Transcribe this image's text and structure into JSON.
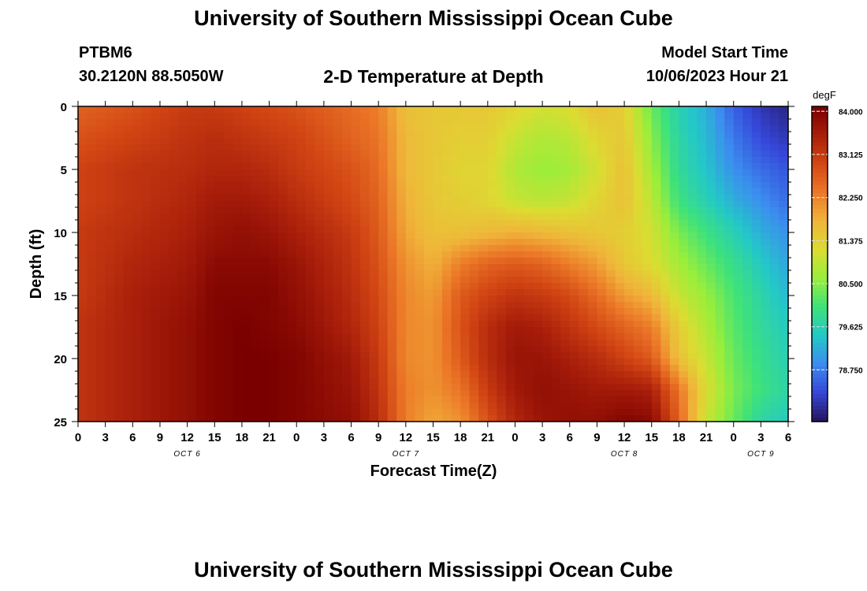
{
  "header": {
    "title": "University of Southern Mississippi Ocean Cube",
    "station": "PTBM6",
    "coords": "30.2120N  88.5050W",
    "subtitle": "2-D Temperature at Depth",
    "model_start_label": "Model Start Time",
    "model_start_value": "10/06/2023 Hour 21"
  },
  "footer": {
    "title": "University of Southern Mississippi Ocean Cube"
  },
  "chart_data": {
    "type": "heatmap",
    "xlabel": "Forecast Time(Z)",
    "ylabel": "Depth (ft)",
    "x_tick_labels": [
      "0",
      "3",
      "6",
      "9",
      "12",
      "15",
      "18",
      "21",
      "0",
      "3",
      "6",
      "9",
      "12",
      "15",
      "18",
      "21",
      "0",
      "3",
      "6",
      "9",
      "12",
      "15",
      "18",
      "21",
      "0",
      "3",
      "6"
    ],
    "x_date_labels": [
      {
        "label": "OCT 6",
        "tick_index": 4
      },
      {
        "label": "OCT 7",
        "tick_index": 12
      },
      {
        "label": "OCT 8",
        "tick_index": 20
      },
      {
        "label": "OCT 9",
        "tick_index": 25
      }
    ],
    "xlim_hours": [
      0,
      78
    ],
    "y_ticks": [
      0,
      5,
      10,
      15,
      20,
      25
    ],
    "ylim": [
      0,
      25
    ],
    "y_inverted": true,
    "colorbar": {
      "unit": "degF",
      "range": [
        77.7,
        84.1
      ],
      "labels": [
        "84.000",
        "83.125",
        "82.250",
        "81.375",
        "80.500",
        "79.625",
        "78.750"
      ],
      "values": [
        84.0,
        83.125,
        82.25,
        81.375,
        80.5,
        79.625,
        78.75
      ],
      "colors": [
        "#25145a",
        "#3546d8",
        "#3c8cf0",
        "#23c8c8",
        "#3ee27a",
        "#9aee3a",
        "#dcdc32",
        "#f0b43a",
        "#ec7828",
        "#d24614",
        "#a81e0a",
        "#7a0000"
      ]
    },
    "field_description_depth_ft": [
      0,
      2.5,
      5,
      7.5,
      10,
      12.5,
      15,
      17.5,
      20,
      22.5,
      25
    ],
    "field_description_hours": [
      0,
      6,
      12,
      15,
      18,
      21,
      24,
      30,
      33,
      36,
      39,
      42,
      45,
      48,
      51,
      54,
      57,
      60,
      63,
      66,
      69,
      72,
      75,
      78
    ],
    "temperature_degF": [
      [
        82.6,
        82.8,
        83.1,
        83.1,
        83.0,
        82.9,
        82.8,
        82.5,
        82.3,
        81.6,
        81.5,
        81.5,
        81.5,
        81.3,
        81.1,
        81.2,
        81.6,
        81.4,
        80.3,
        79.6,
        79.2,
        78.5,
        78.1,
        77.9
      ],
      [
        82.8,
        83.0,
        83.2,
        83.3,
        83.2,
        83.1,
        83.0,
        82.6,
        82.4,
        81.7,
        81.5,
        81.4,
        81.4,
        81.0,
        80.8,
        80.9,
        81.3,
        81.5,
        80.5,
        79.7,
        79.3,
        78.7,
        78.3,
        78.1
      ],
      [
        83.0,
        83.2,
        83.3,
        83.4,
        83.4,
        83.3,
        83.1,
        82.8,
        82.5,
        81.7,
        81.5,
        81.3,
        81.3,
        80.8,
        80.6,
        80.7,
        81.1,
        81.6,
        80.7,
        79.8,
        79.4,
        78.9,
        78.6,
        78.4
      ],
      [
        83.0,
        83.2,
        83.4,
        83.6,
        83.6,
        83.5,
        83.3,
        82.9,
        82.6,
        81.8,
        81.5,
        81.4,
        81.3,
        81.0,
        80.9,
        81.0,
        81.3,
        81.6,
        80.9,
        80.0,
        79.6,
        79.2,
        78.9,
        78.6
      ],
      [
        83.1,
        83.3,
        83.5,
        83.7,
        83.8,
        83.7,
        83.5,
        83.1,
        82.7,
        81.9,
        81.6,
        81.6,
        81.7,
        81.8,
        81.7,
        81.6,
        81.5,
        81.4,
        81.1,
        80.4,
        80.0,
        79.6,
        79.2,
        78.9
      ],
      [
        83.1,
        83.4,
        83.6,
        83.9,
        83.9,
        83.9,
        83.7,
        83.2,
        82.8,
        82.1,
        81.8,
        82.3,
        82.6,
        82.7,
        82.6,
        82.3,
        82.0,
        81.5,
        81.2,
        80.7,
        80.3,
        79.9,
        79.5,
        79.1
      ],
      [
        83.1,
        83.5,
        83.7,
        84.0,
        84.0,
        84.0,
        83.8,
        83.3,
        82.9,
        82.2,
        82.0,
        82.7,
        83.0,
        83.2,
        83.1,
        82.9,
        82.5,
        82.0,
        81.7,
        81.0,
        80.6,
        80.1,
        79.7,
        79.3
      ],
      [
        83.2,
        83.5,
        83.8,
        84.0,
        84.1,
        84.0,
        83.9,
        83.4,
        83.0,
        82.2,
        82.1,
        82.8,
        83.3,
        83.6,
        83.5,
        83.2,
        82.9,
        82.6,
        82.3,
        81.4,
        80.8,
        80.2,
        79.8,
        79.5
      ],
      [
        83.2,
        83.5,
        83.8,
        84.0,
        84.1,
        84.1,
        84.0,
        83.6,
        83.1,
        82.2,
        82.1,
        82.7,
        83.3,
        83.7,
        83.7,
        83.5,
        83.3,
        83.0,
        82.7,
        81.6,
        81.0,
        80.3,
        79.9,
        79.6
      ],
      [
        83.2,
        83.5,
        83.8,
        84.0,
        84.1,
        84.1,
        84.0,
        83.7,
        83.2,
        82.3,
        82.1,
        82.4,
        83.1,
        83.6,
        83.8,
        83.7,
        83.6,
        83.6,
        83.5,
        82.4,
        81.2,
        80.4,
        80.0,
        79.7
      ],
      [
        83.2,
        83.5,
        83.8,
        84.0,
        84.1,
        84.1,
        84.0,
        83.8,
        83.3,
        82.3,
        81.9,
        82.1,
        82.8,
        83.4,
        83.7,
        83.8,
        83.8,
        84.0,
        83.9,
        82.6,
        81.0,
        80.3,
        79.7,
        79.5
      ]
    ]
  }
}
